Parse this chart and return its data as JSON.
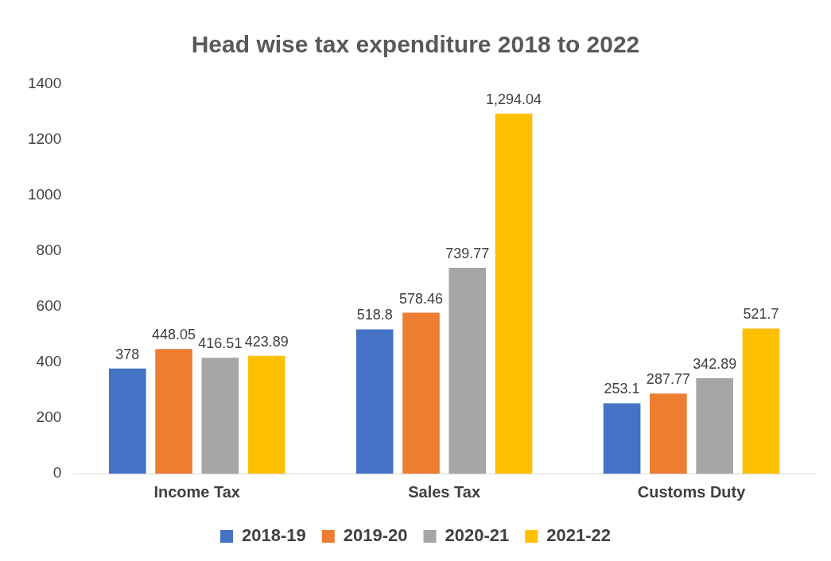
{
  "chart_data": {
    "type": "bar",
    "title": "Head wise tax expenditure 2018 to 2022",
    "categories": [
      "Income Tax",
      "Sales Tax",
      "Customs Duty"
    ],
    "series": [
      {
        "name": "2018-19",
        "color": "#4472c4",
        "values": [
          378,
          518.8,
          253.1
        ],
        "value_labels": [
          "378",
          "518.8",
          "253.1"
        ]
      },
      {
        "name": "2019-20",
        "color": "#ed7d31",
        "values": [
          448.05,
          578.46,
          287.77
        ],
        "value_labels": [
          "448.05",
          "578.46",
          "287.77"
        ]
      },
      {
        "name": "2020-21",
        "color": "#a5a5a5",
        "values": [
          416.51,
          739.77,
          342.89
        ],
        "value_labels": [
          "416.51",
          "739.77",
          "342.89"
        ]
      },
      {
        "name": "2021-22",
        "color": "#ffc000",
        "values": [
          423.89,
          1294.04,
          521.7
        ],
        "value_labels": [
          "423.89",
          "1,294.04",
          "521.7"
        ]
      }
    ],
    "ylim": [
      0,
      1400
    ],
    "yticks": [
      0,
      200,
      400,
      600,
      800,
      1000,
      1200,
      1400
    ],
    "grid": false,
    "legend": "bottom"
  }
}
